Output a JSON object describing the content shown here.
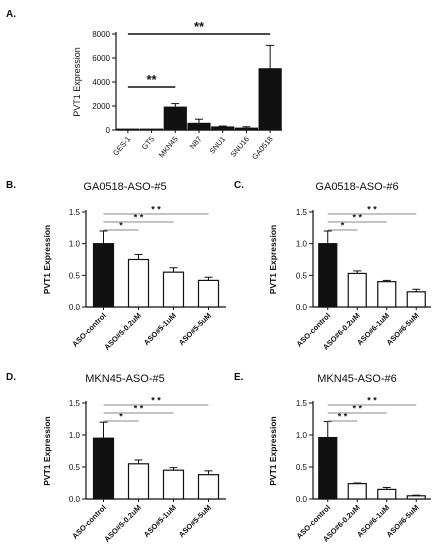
{
  "chart_data": [
    {
      "panel": "A.",
      "type": "bar",
      "title": "",
      "ylabel": "PVT1 Expression",
      "ylim": [
        0,
        8000
      ],
      "yticks": [
        "0",
        "2000",
        "4000",
        "6000",
        "8000"
      ],
      "categories": [
        "GES-1",
        "GT5",
        "MKN45",
        "N87",
        "SNU1",
        "SNU16",
        "GA0518"
      ],
      "values": [
        0,
        0,
        1900,
        550,
        250,
        150,
        5100
      ],
      "errors": [
        0,
        0,
        300,
        350,
        80,
        120,
        1950
      ],
      "annotations": [
        {
          "from": "GES-1",
          "to": "MKN45",
          "label": "**"
        },
        {
          "from": "GES-1",
          "to": "GA0518",
          "label": "**"
        }
      ]
    },
    {
      "panel": "B.",
      "type": "bar",
      "title": "GA0518-ASO-#5",
      "ylabel": "PVT1 Expression",
      "ylim": [
        0,
        1.5
      ],
      "yticks": [
        "0.0",
        "0.5",
        "1.0",
        "1.5"
      ],
      "categories": [
        "ASO-control",
        "ASO#5-0.2uM",
        "ASO#5-1uM",
        "ASO#5-5uM"
      ],
      "values": [
        1.0,
        0.75,
        0.55,
        0.42
      ],
      "errors": [
        0.2,
        0.08,
        0.07,
        0.05
      ],
      "annotations": [
        {
          "from": "ASO-control",
          "to": "ASO#5-0.2uM",
          "label": "*"
        },
        {
          "from": "ASO-control",
          "to": "ASO#5-1uM",
          "label": "* *"
        },
        {
          "from": "ASO-control",
          "to": "ASO#5-5uM",
          "label": "* *"
        }
      ]
    },
    {
      "panel": "C.",
      "type": "bar",
      "title": "GA0518-ASO-#6",
      "ylabel": "PVT1 Expression",
      "ylim": [
        0,
        1.5
      ],
      "yticks": [
        "0.0",
        "0.5",
        "1.0",
        "1.5"
      ],
      "categories": [
        "ASO-control",
        "ASO#6-0.2uM",
        "ASO#6-1uM",
        "ASO#6-5uM"
      ],
      "values": [
        1.0,
        0.53,
        0.4,
        0.24
      ],
      "errors": [
        0.2,
        0.04,
        0.02,
        0.04
      ],
      "annotations": [
        {
          "from": "ASO-control",
          "to": "ASO#6-0.2uM",
          "label": "*"
        },
        {
          "from": "ASO-control",
          "to": "ASO#6-1uM",
          "label": "* *"
        },
        {
          "from": "ASO-control",
          "to": "ASO#6-5uM",
          "label": "* *"
        }
      ]
    },
    {
      "panel": "D.",
      "type": "bar",
      "title": "MKN45-ASO-#5",
      "ylabel": "PVT1 Expression",
      "ylim": [
        0,
        1.5
      ],
      "yticks": [
        "0.0",
        "0.5",
        "1.0",
        "1.5"
      ],
      "categories": [
        "ASO-control",
        "ASO#5-0.2uM",
        "ASO#5-1uM",
        "ASO#5-5uM"
      ],
      "values": [
        0.95,
        0.55,
        0.45,
        0.38
      ],
      "errors": [
        0.25,
        0.06,
        0.04,
        0.06
      ],
      "annotations": [
        {
          "from": "ASO-control",
          "to": "ASO#5-0.2uM",
          "label": "*"
        },
        {
          "from": "ASO-control",
          "to": "ASO#5-1uM",
          "label": "* *"
        },
        {
          "from": "ASO-control",
          "to": "ASO#5-5uM",
          "label": "* *"
        }
      ]
    },
    {
      "panel": "E.",
      "type": "bar",
      "title": "MKN45-ASO-#6",
      "ylabel": "PVT1 Expression",
      "ylim": [
        0,
        1.5
      ],
      "yticks": [
        "0.0",
        "0.5",
        "1.0",
        "1.5"
      ],
      "categories": [
        "ASO-control",
        "ASO#6-0.2uM",
        "ASO#6-1uM",
        "ASO#6-5uM"
      ],
      "values": [
        0.96,
        0.24,
        0.15,
        0.05
      ],
      "errors": [
        0.25,
        0.01,
        0.03,
        0.01
      ],
      "annotations": [
        {
          "from": "ASO-control",
          "to": "ASO#6-0.2uM",
          "label": "* *"
        },
        {
          "from": "ASO-control",
          "to": "ASO#6-1uM",
          "label": "* *"
        },
        {
          "from": "ASO-control",
          "to": "ASO#6-5uM",
          "label": "* *"
        }
      ]
    }
  ]
}
